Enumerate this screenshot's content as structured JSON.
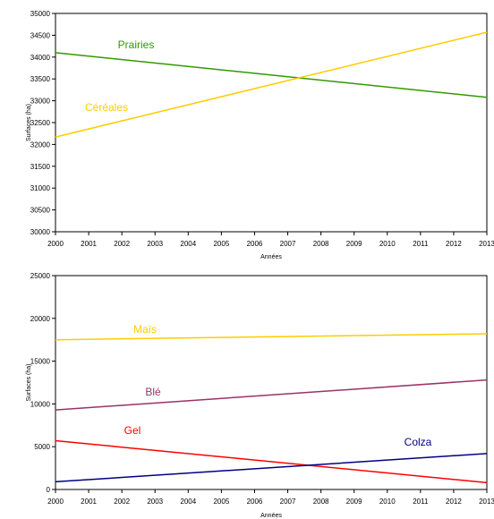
{
  "chart_data": [
    {
      "type": "line",
      "xlabel": "Années",
      "ylabel": "Surfaces (ha)",
      "xlim": [
        2000,
        2013
      ],
      "ylim": [
        30000,
        35000
      ],
      "x_ticks": [
        "2000",
        "2001",
        "2002",
        "2003",
        "2004",
        "2005",
        "2006",
        "2007",
        "2008",
        "2009",
        "2010",
        "2011",
        "2012",
        "2013"
      ],
      "y_ticks": [
        "30000",
        "30500",
        "31000",
        "31500",
        "32000",
        "32500",
        "33000",
        "33500",
        "34000",
        "34500",
        "35000"
      ],
      "grid": false,
      "series": [
        {
          "name": "Prairies",
          "color": "#339900",
          "x": [
            2000,
            2013
          ],
          "y": [
            34100,
            33080
          ]
        },
        {
          "name": "Céréales",
          "color": "#FFCC00",
          "x": [
            2000,
            2013
          ],
          "y": [
            32170,
            34570
          ]
        }
      ]
    },
    {
      "type": "line",
      "xlabel": "Années",
      "ylabel": "Surfaces (ha)",
      "xlim": [
        2000,
        2013
      ],
      "ylim": [
        0,
        25000
      ],
      "x_ticks": [
        "2000",
        "2001",
        "2002",
        "2003",
        "2004",
        "2005",
        "2006",
        "2007",
        "2008",
        "2009",
        "2010",
        "2011",
        "2012",
        "2013"
      ],
      "y_ticks": [
        "0",
        "5000",
        "10000",
        "15000",
        "20000",
        "25000"
      ],
      "grid": false,
      "series": [
        {
          "name": "Maïs",
          "color": "#FFCC00",
          "x": [
            2000,
            2013
          ],
          "y": [
            17500,
            18200
          ]
        },
        {
          "name": "Blé",
          "color": "#993366",
          "x": [
            2000,
            2013
          ],
          "y": [
            9300,
            12800
          ]
        },
        {
          "name": "Gel",
          "color": "#FF0000",
          "x": [
            2000,
            2013
          ],
          "y": [
            5700,
            800
          ]
        },
        {
          "name": "Colza",
          "color": "#000080",
          "x": [
            2000,
            2013
          ],
          "y": [
            900,
            4200
          ]
        }
      ]
    }
  ]
}
